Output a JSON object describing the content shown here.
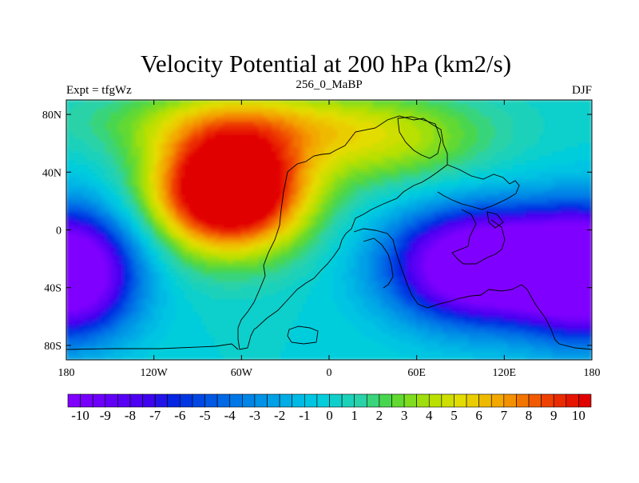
{
  "chart_data": {
    "type": "heatmap",
    "title": "Velocity Potential at 200 hPa (km2/s)",
    "left_string": "Expt = tfgWz",
    "center_string": "256_0_MaBP",
    "right_string": "DJF",
    "units": "km2/s",
    "xlim": [
      -180,
      180
    ],
    "ylim": [
      -90,
      90
    ],
    "x_ticks": [
      -180,
      -120,
      -60,
      0,
      60,
      120,
      180
    ],
    "x_tick_labels": [
      "180",
      "120W",
      "60W",
      "0",
      "60E",
      "120E",
      "180"
    ],
    "y_ticks": [
      80,
      40,
      0,
      -40,
      -80
    ],
    "y_tick_labels": [
      "80N",
      "40N",
      "0",
      "40S",
      "80S"
    ],
    "colorbar": {
      "levels": [
        -10,
        -9.5,
        -9,
        -8.5,
        -8,
        -7.5,
        -7,
        -6.5,
        -6,
        -5.5,
        -5,
        -4.5,
        -4,
        -3.5,
        -3,
        -2.5,
        -2,
        -1.5,
        -1,
        -0.5,
        0,
        0.5,
        1,
        1.5,
        2,
        2.5,
        3,
        3.5,
        4,
        4.5,
        5,
        5.5,
        6,
        6.5,
        7,
        7.5,
        8,
        8.5,
        9,
        9.5,
        10
      ],
      "labels": [
        "-10",
        "-9",
        "-8",
        "-7",
        "-6",
        "-5",
        "-4",
        "-3",
        "-2",
        "-1",
        "0",
        "1",
        "2",
        "3",
        "4",
        "5",
        "6",
        "7",
        "8",
        "9",
        "10"
      ]
    },
    "centers": [
      {
        "name": "divergence max",
        "lon": -68,
        "lat": 28,
        "value": 10.5
      },
      {
        "name": "convergence min east",
        "lon": 105,
        "lat": -25,
        "value": -10.5
      },
      {
        "name": "convergence min west",
        "lon": -178,
        "lat": -30,
        "value": -10.5
      }
    ]
  }
}
